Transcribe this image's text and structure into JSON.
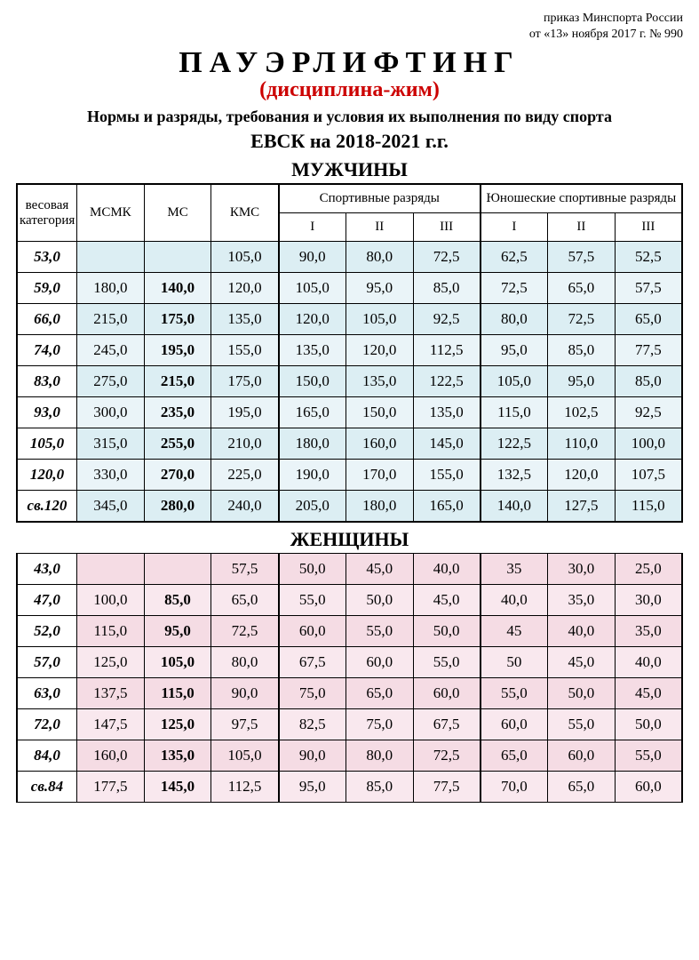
{
  "header": {
    "order_line1": "приказ Минспорта России",
    "order_line2": "от «13» ноября 2017 г. № 990",
    "title_main": "ПАУЭРЛИФТИНГ",
    "title_sub": "(дисциплина-жим)",
    "title_desc": "Нормы и разряды, требования и условия их выполнения по виду спорта",
    "title_period": "ЕВСК на 2018-2021 г.г."
  },
  "column_headers": {
    "weight_cat": "весовая категория",
    "msmk": "МСМК",
    "ms": "МС",
    "kms": "КМС",
    "sport_ranks": "Спортивные разряды",
    "youth_ranks": "Юношеские спортивные разряды",
    "r1": "I",
    "r2": "II",
    "r3": "III"
  },
  "men": {
    "title": "МУЖЧИНЫ",
    "rows": [
      {
        "w": "53,0",
        "msmk": "",
        "ms": "",
        "kms": "105,0",
        "s1": "90,0",
        "s2": "80,0",
        "s3": "72,5",
        "y1": "62,5",
        "y2": "57,5",
        "y3": "52,5"
      },
      {
        "w": "59,0",
        "msmk": "180,0",
        "ms": "140,0",
        "kms": "120,0",
        "s1": "105,0",
        "s2": "95,0",
        "s3": "85,0",
        "y1": "72,5",
        "y2": "65,0",
        "y3": "57,5"
      },
      {
        "w": "66,0",
        "msmk": "215,0",
        "ms": "175,0",
        "kms": "135,0",
        "s1": "120,0",
        "s2": "105,0",
        "s3": "92,5",
        "y1": "80,0",
        "y2": "72,5",
        "y3": "65,0"
      },
      {
        "w": "74,0",
        "msmk": "245,0",
        "ms": "195,0",
        "kms": "155,0",
        "s1": "135,0",
        "s2": "120,0",
        "s3": "112,5",
        "y1": "95,0",
        "y2": "85,0",
        "y3": "77,5"
      },
      {
        "w": "83,0",
        "msmk": "275,0",
        "ms": "215,0",
        "kms": "175,0",
        "s1": "150,0",
        "s2": "135,0",
        "s3": "122,5",
        "y1": "105,0",
        "y2": "95,0",
        "y3": "85,0"
      },
      {
        "w": "93,0",
        "msmk": "300,0",
        "ms": "235,0",
        "kms": "195,0",
        "s1": "165,0",
        "s2": "150,0",
        "s3": "135,0",
        "y1": "115,0",
        "y2": "102,5",
        "y3": "92,5"
      },
      {
        "w": "105,0",
        "msmk": "315,0",
        "ms": "255,0",
        "kms": "210,0",
        "s1": "180,0",
        "s2": "160,0",
        "s3": "145,0",
        "y1": "122,5",
        "y2": "110,0",
        "y3": "100,0"
      },
      {
        "w": "120,0",
        "msmk": "330,0",
        "ms": "270,0",
        "kms": "225,0",
        "s1": "190,0",
        "s2": "170,0",
        "s3": "155,0",
        "y1": "132,5",
        "y2": "120,0",
        "y3": "107,5"
      },
      {
        "w": "св.120",
        "msmk": "345,0",
        "ms": "280,0",
        "kms": "240,0",
        "s1": "205,0",
        "s2": "180,0",
        "s3": "165,0",
        "y1": "140,0",
        "y2": "127,5",
        "y3": "115,0"
      }
    ]
  },
  "women": {
    "title": "ЖЕНЩИНЫ",
    "rows": [
      {
        "w": "43,0",
        "msmk": "",
        "ms": "",
        "kms": "57,5",
        "s1": "50,0",
        "s2": "45,0",
        "s3": "40,0",
        "y1": "35",
        "y2": "30,0",
        "y3": "25,0"
      },
      {
        "w": "47,0",
        "msmk": "100,0",
        "ms": "85,0",
        "kms": "65,0",
        "s1": "55,0",
        "s2": "50,0",
        "s3": "45,0",
        "y1": "40,0",
        "y2": "35,0",
        "y3": "30,0"
      },
      {
        "w": "52,0",
        "msmk": "115,0",
        "ms": "95,0",
        "kms": "72,5",
        "s1": "60,0",
        "s2": "55,0",
        "s3": "50,0",
        "y1": "45",
        "y2": "40,0",
        "y3": "35,0"
      },
      {
        "w": "57,0",
        "msmk": "125,0",
        "ms": "105,0",
        "kms": "80,0",
        "s1": "67,5",
        "s2": "60,0",
        "s3": "55,0",
        "y1": "50",
        "y2": "45,0",
        "y3": "40,0"
      },
      {
        "w": "63,0",
        "msmk": "137,5",
        "ms": "115,0",
        "kms": "90,0",
        "s1": "75,0",
        "s2": "65,0",
        "s3": "60,0",
        "y1": "55,0",
        "y2": "50,0",
        "y3": "45,0"
      },
      {
        "w": "72,0",
        "msmk": "147,5",
        "ms": "125,0",
        "kms": "97,5",
        "s1": "82,5",
        "s2": "75,0",
        "s3": "67,5",
        "y1": "60,0",
        "y2": "55,0",
        "y3": "50,0"
      },
      {
        "w": "84,0",
        "msmk": "160,0",
        "ms": "135,0",
        "kms": "105,0",
        "s1": "90,0",
        "s2": "80,0",
        "s3": "72,5",
        "y1": "65,0",
        "y2": "60,0",
        "y3": "55,0"
      },
      {
        "w": "св.84",
        "msmk": "177,5",
        "ms": "145,0",
        "kms": "112,5",
        "s1": "95,0",
        "s2": "85,0",
        "s3": "77,5",
        "y1": "70,0",
        "y2": "65,0",
        "y3": "60,0"
      }
    ]
  },
  "style": {
    "men_bg": "#dceef3",
    "men_bg_alt": "#eaf4f8",
    "women_bg": "#f5dce4",
    "women_bg_alt": "#f9e8ee",
    "accent_red": "#cc0000",
    "border": "#000000"
  }
}
